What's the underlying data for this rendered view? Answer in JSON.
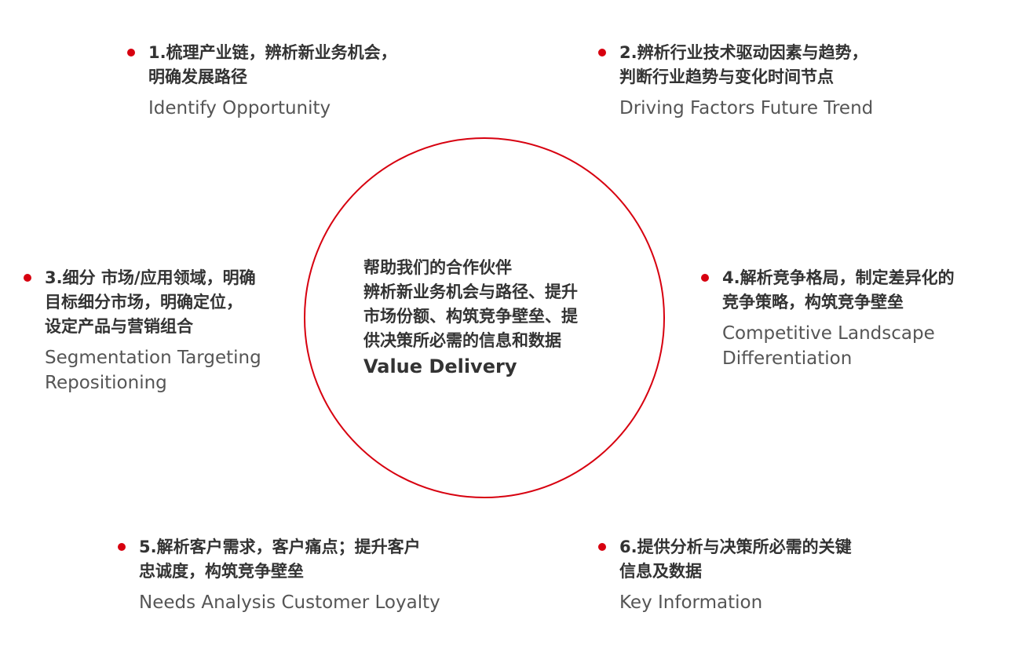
{
  "accent_color": "#d7000f",
  "center": {
    "lines": [
      "帮助我们的合作伙伴",
      "辨析新业务机会与路径、提升",
      "市场份额、构筑竞争壁垒、提",
      "供决策所必需的信息和数据"
    ],
    "english": "Value Delivery"
  },
  "items": [
    {
      "cn": [
        "1.梳理产业链，辨析新业务机会，",
        "明确发展路径"
      ],
      "en": [
        "Identify Opportunity"
      ]
    },
    {
      "cn": [
        "2.辨析行业技术驱动因素与趋势，",
        "判断行业趋势与变化时间节点"
      ],
      "en": [
        "Driving Factors Future Trend"
      ]
    },
    {
      "cn": [
        "3.细分 市场/应用领域，明确",
        "目标细分市场，明确定位，",
        "设定产品与营销组合"
      ],
      "en": [
        "Segmentation Targeting",
        "Repositioning"
      ]
    },
    {
      "cn": [
        "4.解析竞争格局，制定差异化的",
        "竞争策略，构筑竞争壁垒"
      ],
      "en": [
        "Competitive Landscape",
        "Differentiation"
      ]
    },
    {
      "cn": [
        "5.解析客户需求，客户痛点；提升客户",
        "忠诚度，构筑竞争壁垒"
      ],
      "en": [
        "Needs Analysis Customer Loyalty"
      ]
    },
    {
      "cn": [
        "6.提供分析与决策所必需的关键",
        "信息及数据"
      ],
      "en": [
        "Key Information"
      ]
    }
  ]
}
